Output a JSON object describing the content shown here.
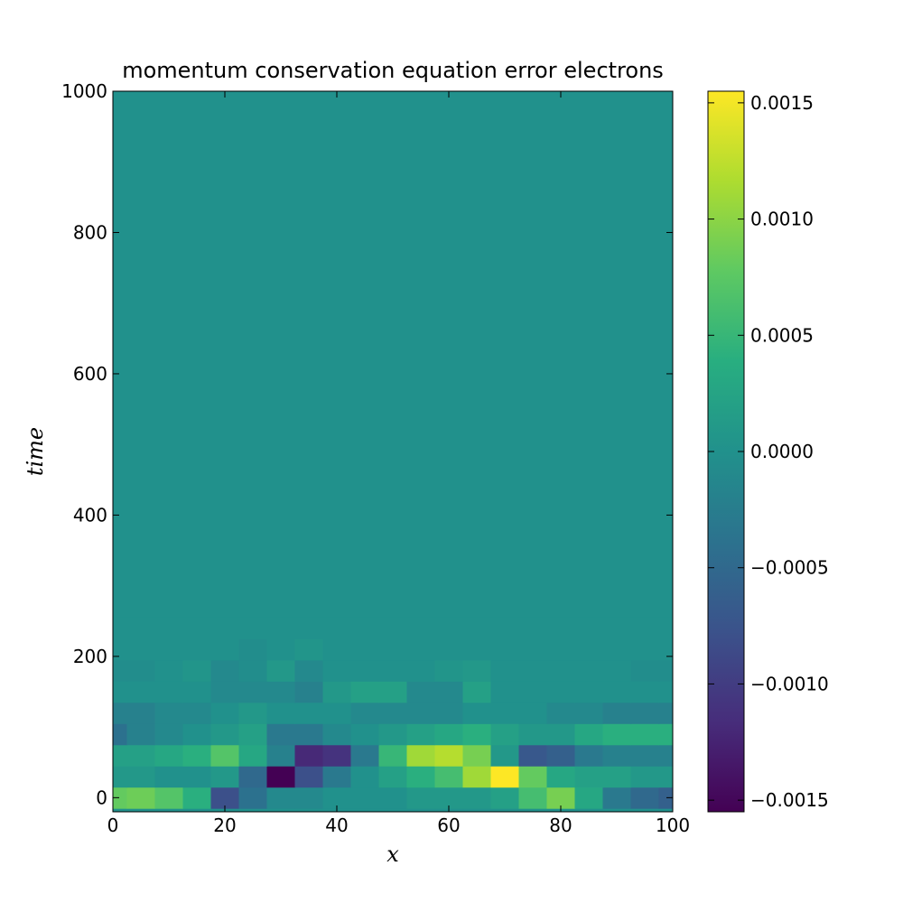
{
  "chart_data": {
    "type": "heatmap",
    "title": "momentum conservation equation error electrons",
    "xlabel": "x",
    "ylabel": "time",
    "xlim": [
      0,
      100
    ],
    "ylim": [
      -20,
      1000
    ],
    "x_ticks": [
      "0",
      "20",
      "40",
      "60",
      "80",
      "100"
    ],
    "y_ticks": [
      "0",
      "200",
      "400",
      "600",
      "800",
      "1000"
    ],
    "colormap": "viridis",
    "colorbar": {
      "vmin": -0.00155,
      "vmax": 0.00155,
      "ticks": [
        "0.0015",
        "0.0010",
        "0.0005",
        "0.0000",
        "−0.0005",
        "−0.0010",
        "−0.0015"
      ]
    },
    "x_columns": [
      0,
      5,
      10,
      15,
      20,
      25,
      30,
      35,
      40,
      45,
      50,
      55,
      60,
      65,
      70,
      75,
      80,
      85,
      90,
      95,
      100
    ],
    "rows": [
      {
        "time": 0,
        "values": [
          0.0008,
          0.00085,
          0.0007,
          0.0004,
          -0.0008,
          -0.0004,
          -0.0001,
          -0.0001,
          0.0,
          0.0,
          0.0,
          0.0001,
          0.0001,
          0.0001,
          0.0002,
          0.0006,
          0.0009,
          0.0003,
          -0.0003,
          -0.0005,
          -0.0006
        ]
      },
      {
        "time": 30,
        "values": [
          0.0001,
          0.0001,
          0.0,
          0.0,
          0.0001,
          -0.0005,
          -0.0016,
          -0.0008,
          -0.0003,
          0.0,
          0.0002,
          0.0004,
          0.0006,
          0.0011,
          0.00155,
          0.0008,
          0.0003,
          0.0002,
          0.0002,
          0.0001,
          0.0001
        ]
      },
      {
        "time": 60,
        "values": [
          0.0002,
          0.0002,
          0.0003,
          0.0004,
          0.0007,
          0.0003,
          -0.0002,
          -0.0012,
          -0.0011,
          -0.0003,
          0.0005,
          0.0011,
          0.0012,
          0.0009,
          0.0001,
          -0.0007,
          -0.0006,
          -0.0003,
          -0.0002,
          -0.0002,
          -0.0002
        ]
      },
      {
        "time": 90,
        "values": [
          -0.0004,
          -0.0002,
          -0.0001,
          0.0,
          0.0001,
          0.0002,
          -0.0003,
          -0.0003,
          -0.0001,
          0.0,
          0.0001,
          0.0002,
          0.0003,
          0.0004,
          0.0002,
          0.0001,
          0.0001,
          0.0003,
          0.0004,
          0.0004,
          0.0004
        ]
      },
      {
        "time": 120,
        "values": [
          -0.0002,
          -0.0002,
          -0.0001,
          -0.0001,
          0.0,
          0.0001,
          0.0,
          0.0,
          0.0,
          -0.0001,
          -0.0001,
          -0.0001,
          -0.0001,
          0.0,
          0.0,
          0.0,
          -0.0001,
          -0.0001,
          -0.0002,
          -0.0002,
          -0.0002
        ]
      },
      {
        "time": 150,
        "values": [
          0.0,
          0.0,
          0.0,
          0.0,
          -0.0001,
          -0.0001,
          -0.0001,
          -0.0002,
          0.0001,
          0.0002,
          0.0002,
          -0.0001,
          -0.0001,
          0.0002,
          0.0,
          0.0,
          0.0,
          0.0,
          0.0,
          0.0,
          0.0
        ]
      },
      {
        "time": 180,
        "values": [
          -5e-05,
          -5e-05,
          0.0,
          5e-05,
          -0.0001,
          -5e-05,
          0.0001,
          -0.0001,
          0.0,
          0.0,
          0.0,
          0.0,
          5e-05,
          0.0001,
          0.0,
          0.0,
          0.0,
          0.0,
          0.0,
          -5e-05,
          -5e-05
        ]
      },
      {
        "time": 210,
        "values": [
          0.0,
          0.0,
          0.0,
          0.0,
          0.0,
          -5e-05,
          0.0,
          5e-05,
          0.0,
          0.0,
          0.0,
          0.0,
          0.0,
          0.0,
          0.0,
          0.0,
          0.0,
          0.0,
          0.0,
          0.0,
          0.0
        ]
      },
      {
        "time": 240,
        "values": [
          0.0,
          0.0,
          0.0,
          0.0,
          0.0,
          0.0,
          0.0,
          0.0,
          0.0,
          0.0,
          0.0,
          0.0,
          0.0,
          0.0,
          0.0,
          0.0,
          0.0,
          0.0,
          0.0,
          0.0,
          0.0
        ]
      }
    ],
    "background_value": 0.0
  }
}
